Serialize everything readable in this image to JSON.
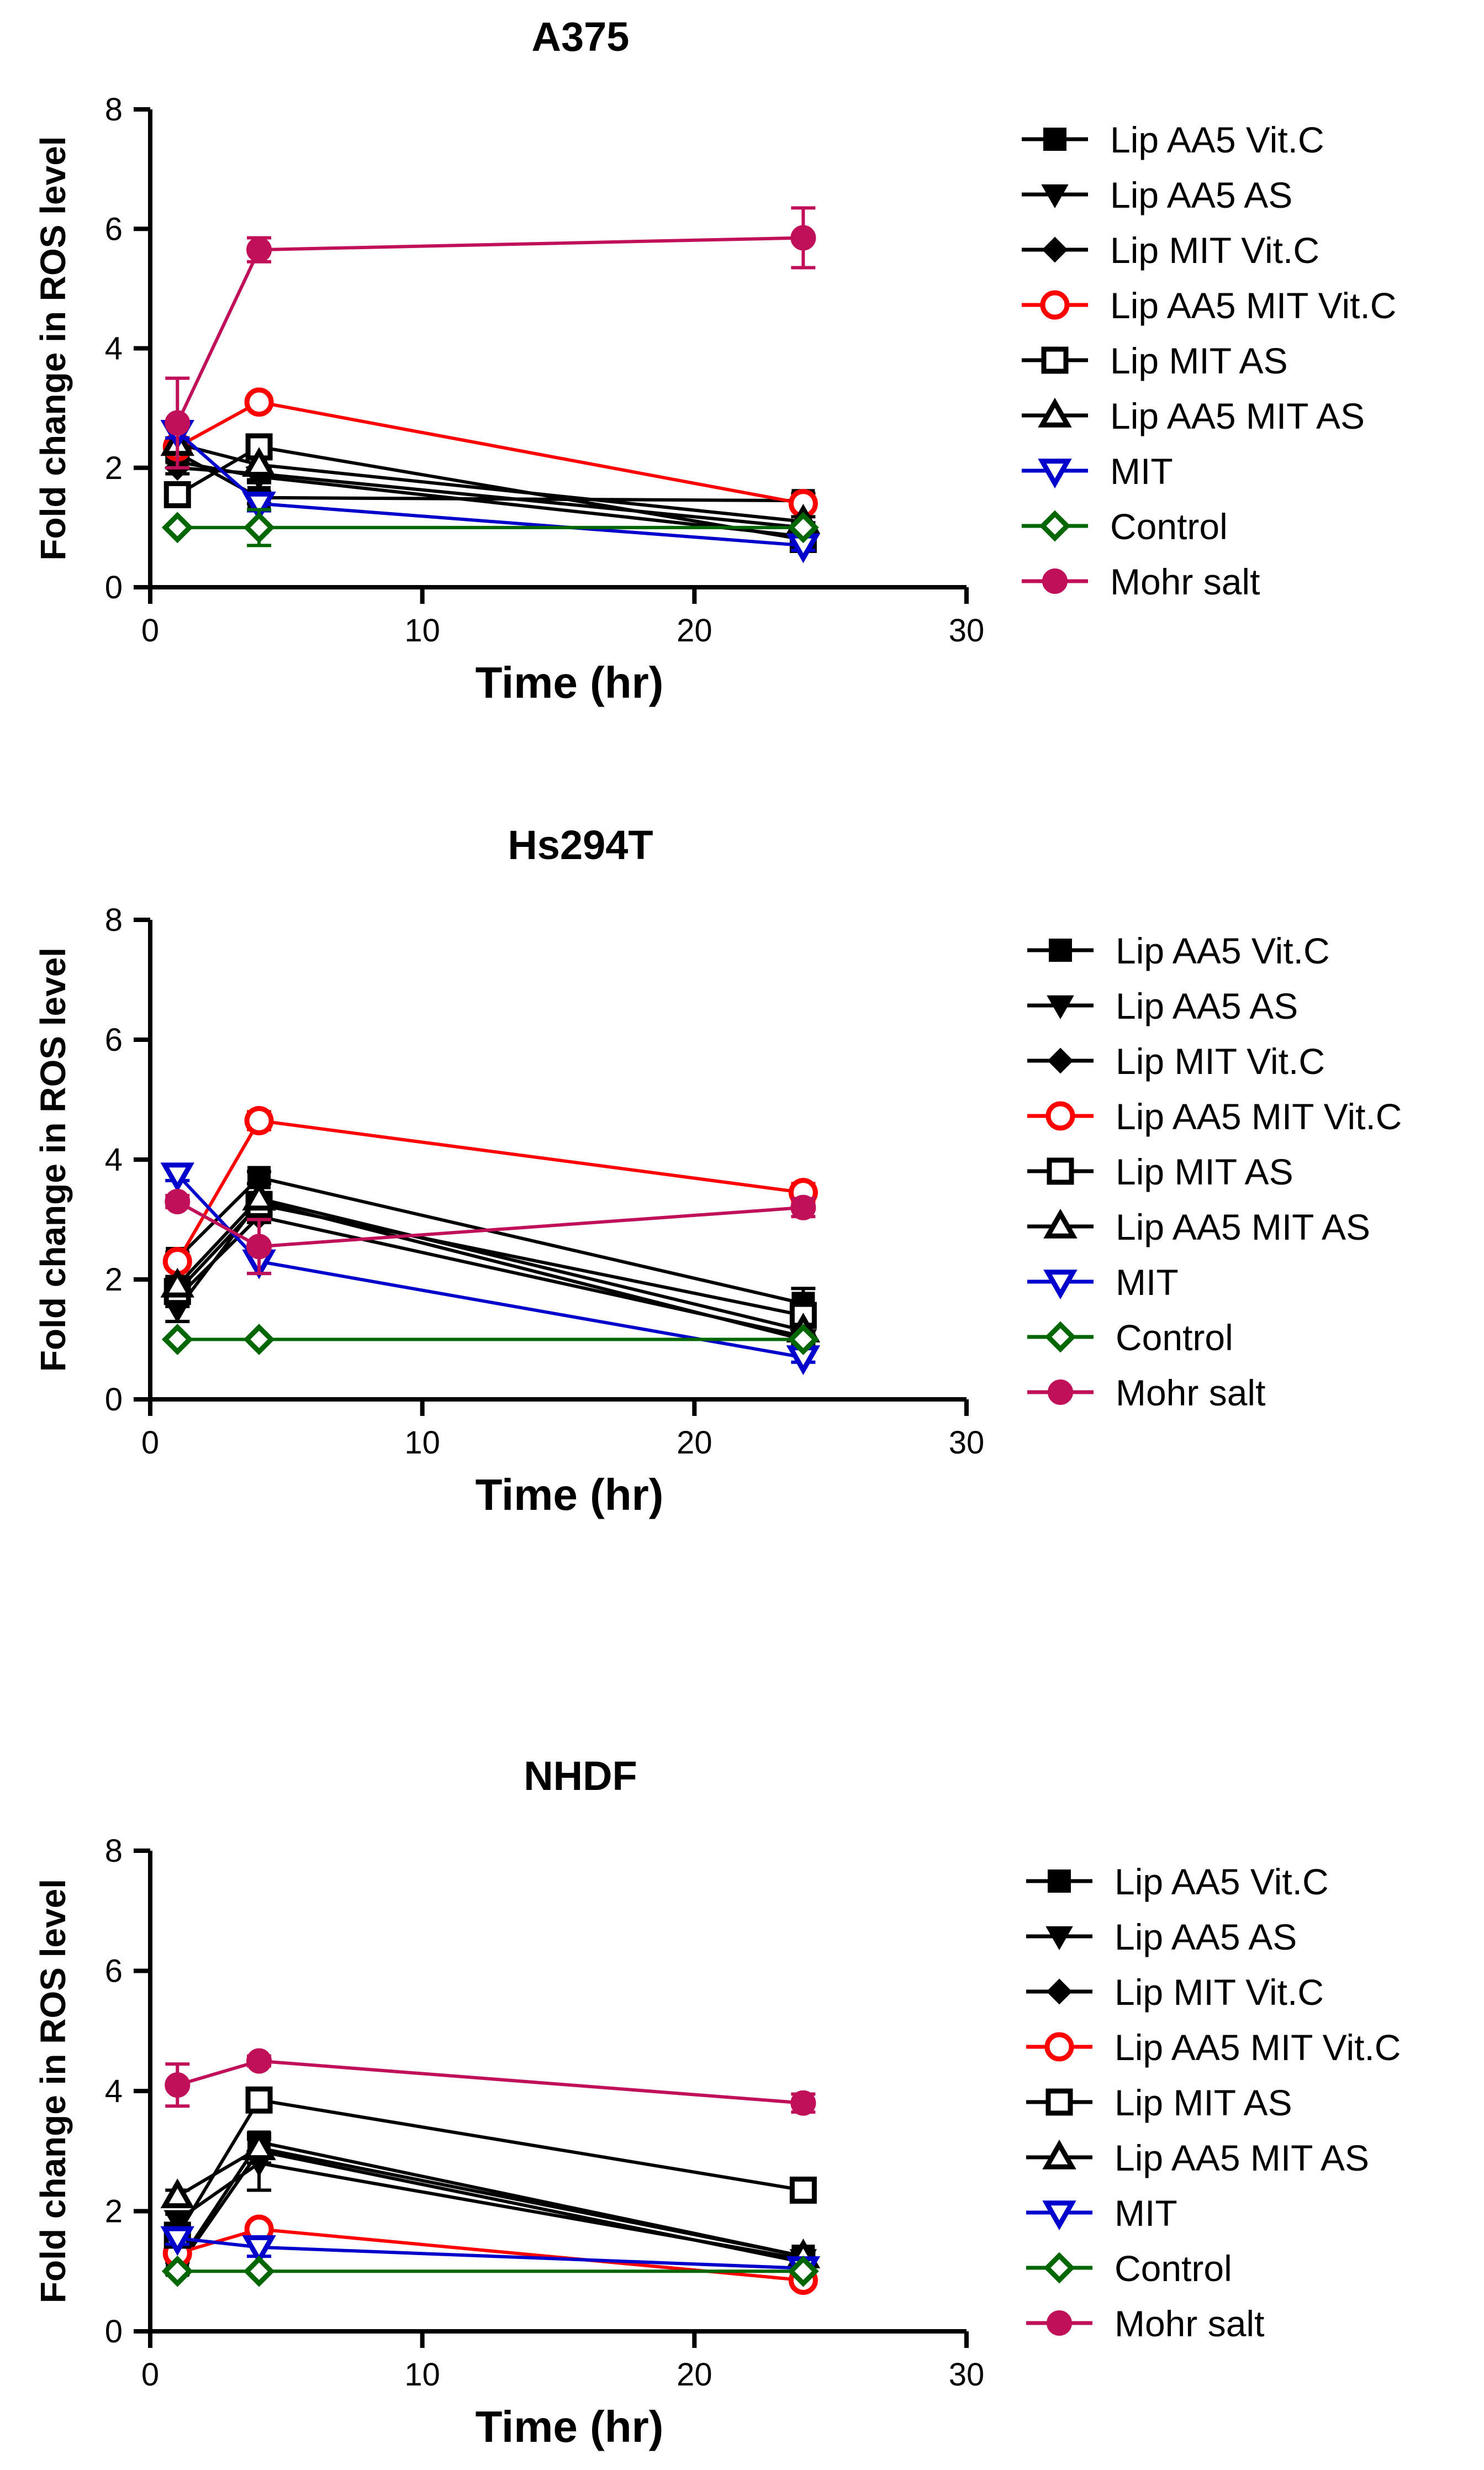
{
  "chart_data": [
    {
      "type": "line",
      "title": "A375",
      "xlabel": "Time (hr)",
      "ylabel": "Fold change in ROS level",
      "xlim": [
        0,
        30
      ],
      "ylim": [
        0,
        8
      ],
      "xticks": [
        0,
        10,
        20,
        30
      ],
      "yticks": [
        0,
        2,
        4,
        6,
        8
      ],
      "x": [
        1,
        4,
        24
      ],
      "series": [
        {
          "name": "Lip AA5 Vit.C",
          "marker": "square",
          "color": "#000000",
          "values": [
            2.25,
            1.5,
            1.45
          ],
          "err": [
            0.1,
            0.1,
            0.12
          ]
        },
        {
          "name": "Lip AA5 AS",
          "marker": "triangle-down",
          "color": "#000000",
          "values": [
            2.1,
            1.85,
            0.85
          ],
          "err": [
            0.1,
            0.1,
            0.08
          ]
        },
        {
          "name": "Lip MIT Vit.C",
          "marker": "diamond",
          "color": "#000000",
          "values": [
            2.0,
            1.9,
            1.0
          ],
          "err": [
            0.1,
            0.1,
            0.08
          ]
        },
        {
          "name": "Lip AA5 MIT Vit.C",
          "marker": "circle-open",
          "color": "#ff0000",
          "values": [
            2.35,
            3.1,
            1.4
          ],
          "err": [
            0.1,
            0.08,
            0.08
          ]
        },
        {
          "name": "Lip MIT AS",
          "marker": "square-open",
          "color": "#000000",
          "values": [
            1.55,
            2.35,
            0.8
          ],
          "err": [
            0.1,
            0.1,
            0.08
          ]
        },
        {
          "name": "Lip AA5 MIT AS",
          "marker": "triangle-open",
          "color": "#000000",
          "values": [
            2.4,
            2.05,
            1.1
          ],
          "err": [
            0.1,
            0.1,
            0.08
          ]
        },
        {
          "name": "MIT",
          "marker": "triangle-down-open",
          "color": "#0000cc",
          "values": [
            2.6,
            1.4,
            0.7
          ],
          "err": [
            0.1,
            0.12,
            0.08
          ]
        },
        {
          "name": "Control",
          "marker": "diamond-open",
          "color": "#006600",
          "values": [
            1.0,
            1.0,
            1.0
          ],
          "err": [
            0.0,
            0.3,
            0.0
          ]
        },
        {
          "name": " Mohr salt",
          "marker": "circle",
          "color": "#c0105a",
          "values": [
            2.75,
            5.65,
            5.85
          ],
          "err": [
            0.75,
            0.2,
            0.5
          ]
        }
      ]
    },
    {
      "type": "line",
      "title": "Hs294T",
      "xlabel": "Time (hr)",
      "ylabel": "Fold change in ROS level",
      "xlim": [
        0,
        30
      ],
      "ylim": [
        0,
        8
      ],
      "xticks": [
        0,
        10,
        20,
        30
      ],
      "yticks": [
        0,
        2,
        4,
        6,
        8
      ],
      "x": [
        1,
        4,
        24
      ],
      "series": [
        {
          "name": "Lip AA5 Vit.C",
          "marker": "square",
          "color": "#000000",
          "values": [
            2.35,
            3.7,
            1.6
          ],
          "err": [
            0.1,
            0.1,
            0.25
          ]
        },
        {
          "name": "Lip AA5 AS",
          "marker": "triangle-down",
          "color": "#000000",
          "values": [
            1.5,
            3.3,
            1.0
          ],
          "err": [
            0.2,
            0.1,
            0.08
          ]
        },
        {
          "name": "Lip MIT Vit.C",
          "marker": "diamond",
          "color": "#000000",
          "values": [
            1.7,
            3.05,
            1.05
          ],
          "err": [
            0.15,
            0.1,
            0.08
          ]
        },
        {
          "name": "Lip AA5 MIT Vit.C",
          "marker": "circle-open",
          "color": "#ff0000",
          "values": [
            2.3,
            4.65,
            3.45
          ],
          "err": [
            0.1,
            0.15,
            0.15
          ]
        },
        {
          "name": "Lip MIT AS",
          "marker": "square-open",
          "color": "#000000",
          "values": [
            1.8,
            3.25,
            1.4
          ],
          "err": [
            0.15,
            0.1,
            0.15
          ]
        },
        {
          "name": "Lip AA5 MIT AS",
          "marker": "triangle-open",
          "color": "#000000",
          "values": [
            1.9,
            3.35,
            1.15
          ],
          "err": [
            0.15,
            0.1,
            0.1
          ]
        },
        {
          "name": "MIT",
          "marker": "triangle-down-open",
          "color": "#0000cc",
          "values": [
            3.75,
            2.3,
            0.7
          ],
          "err": [
            0.1,
            0.2,
            0.08
          ]
        },
        {
          "name": "Control",
          "marker": "diamond-open",
          "color": "#006600",
          "values": [
            1.0,
            1.0,
            1.0
          ],
          "err": [
            0.0,
            0.0,
            0.0
          ]
        },
        {
          "name": " Mohr salt",
          "marker": "circle",
          "color": "#c0105a",
          "values": [
            3.3,
            2.55,
            3.2
          ],
          "err": [
            0.1,
            0.45,
            0.15
          ]
        }
      ]
    },
    {
      "type": "line",
      "title": "NHDF",
      "xlabel": "Time (hr)",
      "ylabel": "Fold change in ROS level",
      "xlim": [
        0,
        30
      ],
      "ylim": [
        0,
        8
      ],
      "xticks": [
        0,
        10,
        20,
        30
      ],
      "yticks": [
        0,
        2,
        4,
        6,
        8
      ],
      "x": [
        1,
        4,
        24
      ],
      "series": [
        {
          "name": "Lip AA5 Vit.C",
          "marker": "square",
          "color": "#000000",
          "values": [
            1.1,
            3.15,
            1.25
          ],
          "err": [
            0.1,
            0.15,
            0.08
          ]
        },
        {
          "name": "Lip AA5 AS",
          "marker": "triangle-down",
          "color": "#000000",
          "values": [
            1.85,
            2.8,
            1.2
          ],
          "err": [
            0.1,
            0.45,
            0.08
          ]
        },
        {
          "name": "Lip MIT Vit.C",
          "marker": "diamond",
          "color": "#000000",
          "values": [
            1.05,
            3.0,
            1.15
          ],
          "err": [
            0.1,
            0.2,
            0.08
          ]
        },
        {
          "name": "Lip AA5 MIT Vit.C",
          "marker": "circle-open",
          "color": "#ff0000",
          "values": [
            1.3,
            1.7,
            0.85
          ],
          "err": [
            0.1,
            0.1,
            0.08
          ]
        },
        {
          "name": "Lip MIT AS",
          "marker": "square-open",
          "color": "#000000",
          "values": [
            1.6,
            3.85,
            2.35
          ],
          "err": [
            0.1,
            0.1,
            0.08
          ]
        },
        {
          "name": "Lip AA5 MIT AS",
          "marker": "triangle-open",
          "color": "#000000",
          "values": [
            2.25,
            3.05,
            1.25
          ],
          "err": [
            0.1,
            0.15,
            0.08
          ]
        },
        {
          "name": "MIT",
          "marker": "triangle-down-open",
          "color": "#0000cc",
          "values": [
            1.55,
            1.4,
            1.05
          ],
          "err": [
            0.1,
            0.15,
            0.08
          ]
        },
        {
          "name": "Control",
          "marker": "diamond-open",
          "color": "#006600",
          "values": [
            1.0,
            1.0,
            1.0
          ],
          "err": [
            0.0,
            0.0,
            0.0
          ]
        },
        {
          "name": " Mohr salt",
          "marker": "circle",
          "color": "#c0105a",
          "values": [
            4.1,
            4.5,
            3.8
          ],
          "err": [
            0.35,
            0.08,
            0.15
          ]
        }
      ]
    }
  ]
}
